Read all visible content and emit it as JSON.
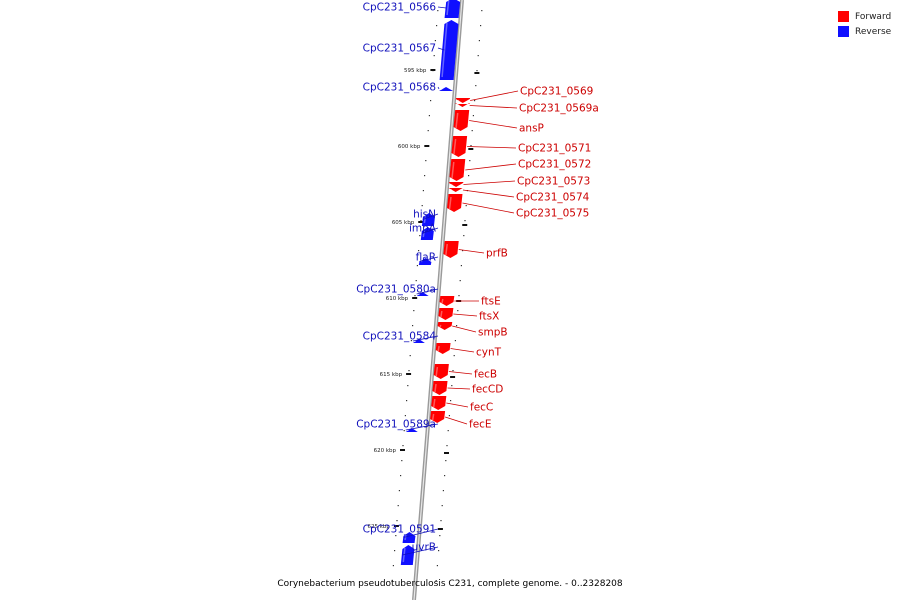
{
  "legend": {
    "forward_label": "Forward",
    "reverse_label": "Reverse",
    "forward_color": "#ff0000",
    "reverse_color": "#1010ff"
  },
  "caption": "Corynebacterium pseudotuberculosis C231, complete genome. - 0..2328208",
  "scale_labels": [
    "595 kbp",
    "600 kbp",
    "605 kbp",
    "610 kbp",
    "615 kbp",
    "620 kbp",
    "625 kbp"
  ],
  "reverse_genes": [
    "CpC231_0566",
    "CpC231_0567",
    "CpC231_0568",
    "hisN",
    "impA",
    "flaR",
    "CpC231_0580a",
    "CpC231_0584",
    "CpC231_0589a",
    "CpC231_0591",
    "uvrB"
  ],
  "forward_genes": [
    "CpC231_0569",
    "CpC231_0569a",
    "ansP",
    "CpC231_0571",
    "CpC231_0572",
    "CpC231_0573",
    "CpC231_0574",
    "CpC231_0575",
    "prfB",
    "ftsE",
    "ftsX",
    "smpB",
    "cynT",
    "fecB",
    "fecCD",
    "fecC",
    "fecE"
  ]
}
